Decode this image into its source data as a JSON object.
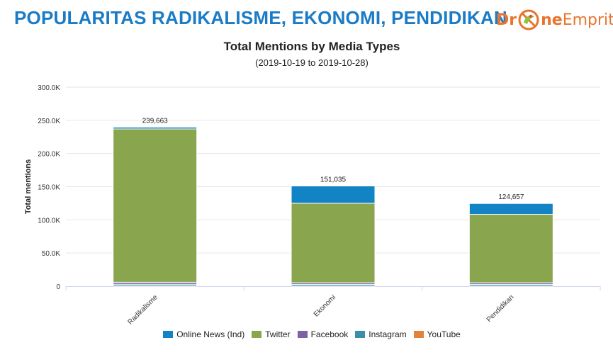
{
  "header": {
    "title": "POPULARITAS RADIKALISME, EKONOMI, PENDIDIKAN",
    "logo_left": "Dr",
    "logo_right_bold": "ne",
    "logo_right": "Emprit"
  },
  "colors": {
    "header_title": "#1a7bc6",
    "logo": "#e8742e"
  },
  "chart_data": {
    "type": "bar",
    "stacked": true,
    "title": "Total Mentions by Media Types",
    "subtitle": "(2019-10-19 to 2019-10-28)",
    "xlabel": "",
    "ylabel": "Total mentions",
    "ylim": [
      0,
      300000
    ],
    "yticks": [
      0,
      50000,
      100000,
      150000,
      200000,
      250000,
      300000
    ],
    "ytick_labels": [
      "0",
      "50.0K",
      "100.0K",
      "150.0K",
      "200.0K",
      "250.0K",
      "300.0K"
    ],
    "grid": true,
    "legend_position": "bottom",
    "categories": [
      "Radikalisme",
      "Ekonomi",
      "Pendidikan"
    ],
    "totals": [
      239663,
      151035,
      124657
    ],
    "total_labels": [
      "239,663",
      "151,035",
      "124,657"
    ],
    "series": [
      {
        "name": "YouTube",
        "color": "#e3823a",
        "values": [
          500,
          300,
          300
        ]
      },
      {
        "name": "Instagram",
        "color": "#3b8fa6",
        "values": [
          2500,
          2500,
          2500
        ]
      },
      {
        "name": "Facebook",
        "color": "#7e62a3",
        "values": [
          3000,
          2500,
          2500
        ]
      },
      {
        "name": "Twitter",
        "color": "#89a54e",
        "values": [
          231000,
          119700,
          103000
        ]
      },
      {
        "name": "Online News (Ind)",
        "color": "#1283c4",
        "values": [
          2663,
          26035,
          16357
        ]
      }
    ],
    "legend_order": [
      "Online News (Ind)",
      "Twitter",
      "Facebook",
      "Instagram",
      "YouTube"
    ]
  }
}
